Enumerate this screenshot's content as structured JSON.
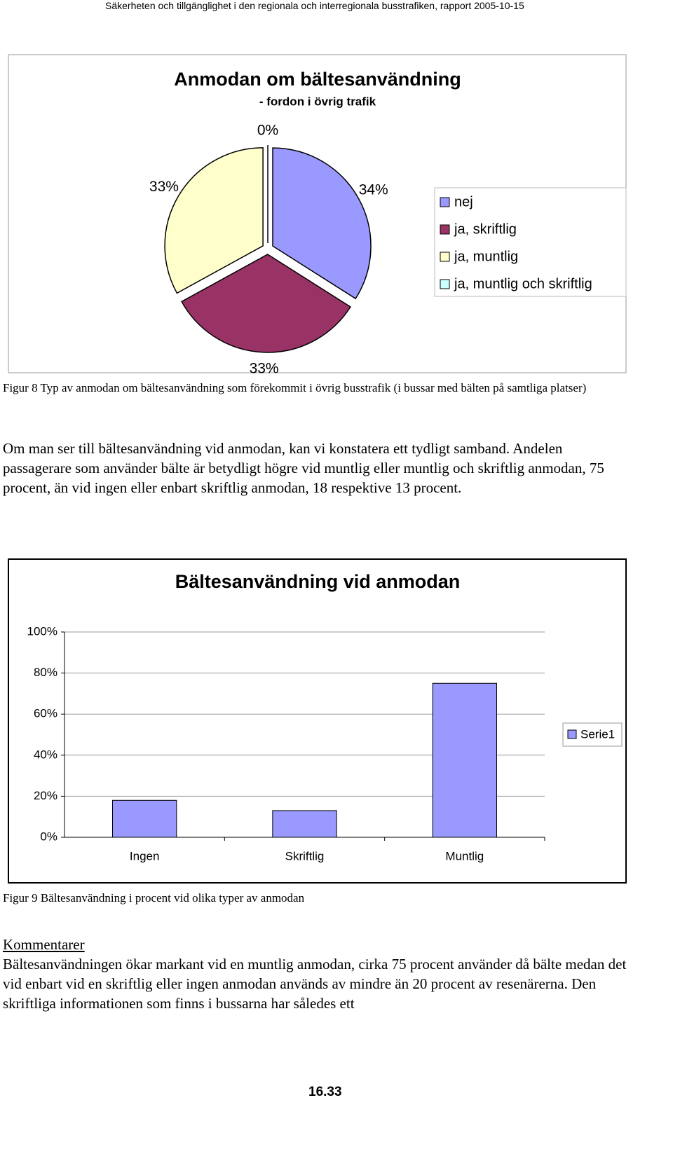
{
  "header": "Säkerheten och tillgänglighet i den regionala och interregionala busstrafiken, rapport 2005-10-15",
  "chart_data": [
    {
      "type": "pie",
      "title": "Anmodan om bältesanvändning",
      "subtitle": "- fordon i övrig trafik",
      "categories": [
        "nej",
        "ja, skriftlig",
        "ja, muntlig",
        "ja, muntlig och skriftlig"
      ],
      "values": [
        34,
        33,
        33,
        0
      ],
      "value_labels": [
        "34%",
        "33%",
        "33%",
        "0%"
      ],
      "colors": [
        "#9999ff",
        "#993366",
        "#ffffcc",
        "#ccffff"
      ],
      "legend": "right"
    },
    {
      "type": "bar",
      "title": "Bältesanvändning vid anmodan",
      "categories": [
        "Ingen",
        "Skriftlig",
        "Muntlig"
      ],
      "series": [
        {
          "name": "Serie1",
          "color": "#9999ff",
          "values": [
            18,
            13,
            75
          ]
        }
      ],
      "ylim": [
        0,
        100
      ],
      "yticks": [
        {
          "value": 0,
          "label": "0%"
        },
        {
          "value": 20,
          "label": "20%"
        },
        {
          "value": 40,
          "label": "40%"
        },
        {
          "value": 60,
          "label": "60%"
        },
        {
          "value": 80,
          "label": "80%"
        },
        {
          "value": 100,
          "label": "100%"
        }
      ],
      "grid": true,
      "legend": "right"
    }
  ],
  "captions": [
    "Figur 8 Typ av anmodan om bältesanvändning som förekommit i övrig busstrafik (i bussar med bälten på samtliga platser)",
    "Figur 9 Bältesanvändning i procent vid olika typer av anmodan"
  ],
  "paragraphs": [
    "Om man ser till bältesanvändning vid anmodan, kan vi konstatera ett tydligt samband. Andelen passagerare som använder bälte är betydligt högre vid muntlig eller muntlig och skriftlig anmodan, 75 procent, än vid ingen eller enbart skriftlig anmodan, 18 respektive 13 procent.",
    "Bältesanvändningen ökar markant vid en muntlig anmodan, cirka 75 procent använder då bälte medan det vid enbart vid en skriftlig eller ingen anmodan används av mindre än 20 procent av resenärerna. Den skriftliga informationen som finns i bussarna har således ett"
  ],
  "comment_heading": "Kommentarer",
  "page_number": "16.33"
}
